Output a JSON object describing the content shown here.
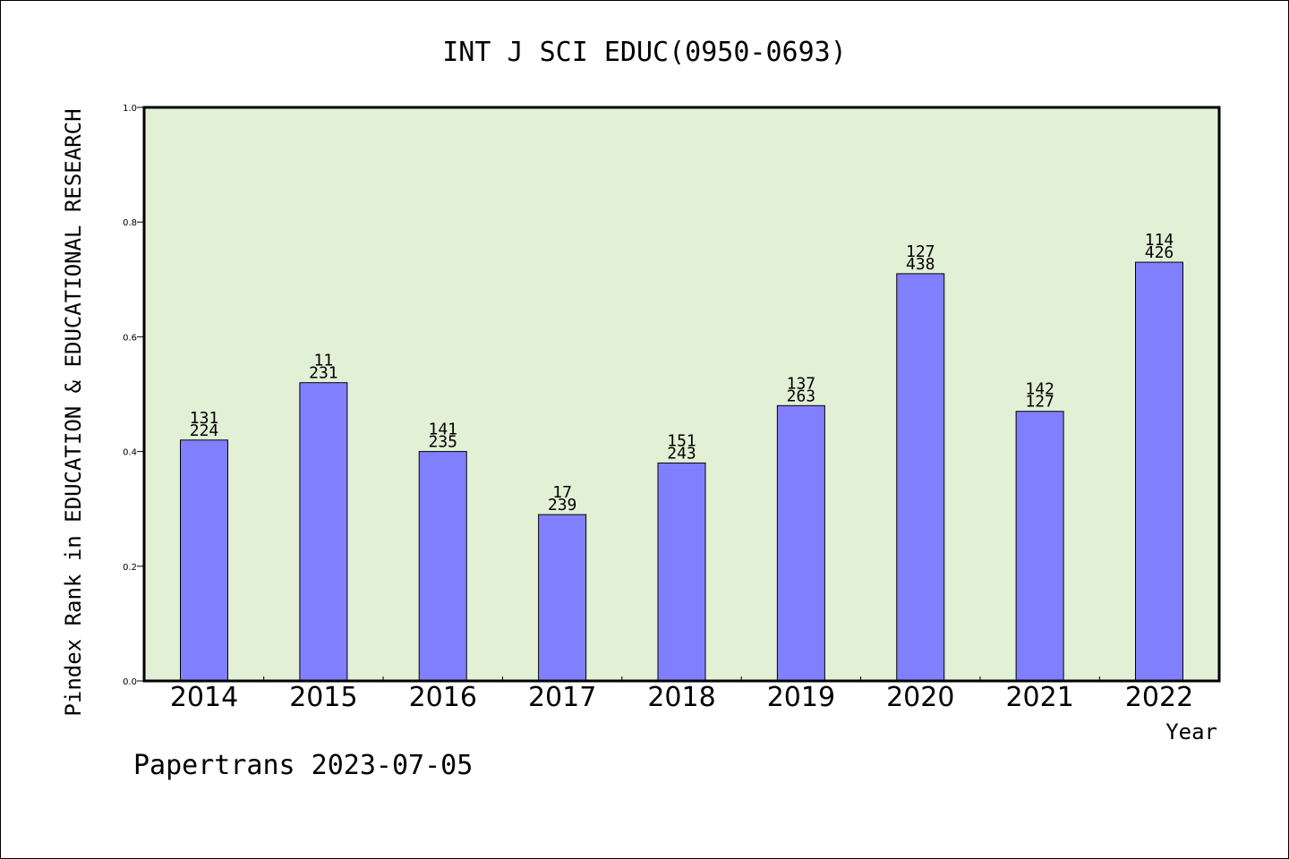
{
  "chart_data": {
    "type": "bar",
    "title": "INT J SCI EDUC(0950-0693)",
    "xlabel": "Year",
    "ylabel": "Pindex Rank in EDUCATION & EDUCATIONAL RESEARCH",
    "ylim": [
      0,
      1.0
    ],
    "yticks": [
      "0.0",
      "0.2",
      "0.4",
      "0.6",
      "0.8",
      "1.0"
    ],
    "grid": false,
    "categories": [
      "2014",
      "2015",
      "2016",
      "2017",
      "2018",
      "2019",
      "2020",
      "2021",
      "2022"
    ],
    "values": [
      0.42,
      0.52,
      0.4,
      0.29,
      0.38,
      0.48,
      0.71,
      0.47,
      0.73
    ],
    "labels_top": [
      "131",
      "11",
      "141",
      "17",
      "151",
      "137",
      "127",
      "142",
      "114"
    ],
    "labels_bottom": [
      "224",
      "231",
      "235",
      "239",
      "243",
      "263",
      "438",
      "127",
      "426"
    ],
    "colors": {
      "bar": "#8080ff",
      "plot_background": "#e2f0d6",
      "frame": "#000000"
    }
  },
  "footer": "Papertrans 2023-07-05"
}
